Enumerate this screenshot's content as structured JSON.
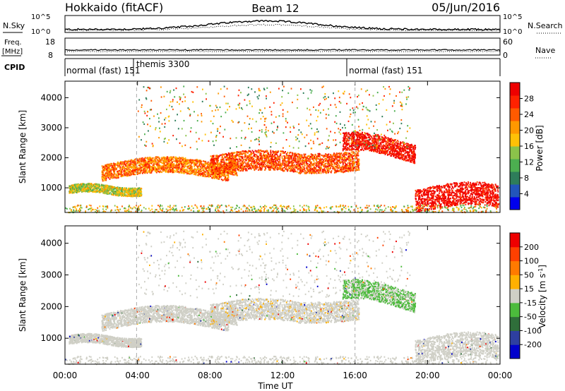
{
  "header": {
    "station": "Hokkaido (fitACF)",
    "beam": "Beam 12",
    "date": "05/Jun/2016"
  },
  "summary": {
    "nsky_label": "N.Sky",
    "nsearch_label": "N.Search",
    "freq_label_1": "Freq.",
    "freq_label_2": "[MHz]",
    "nave_label": "Nave",
    "cpid_label": "CPID",
    "nsky_ticks": [
      "10^5",
      "10^0"
    ],
    "nsearch_ticks": [
      "10^5",
      "10^0"
    ],
    "freq_ticks": [
      "18",
      "8"
    ],
    "nave_ticks": [
      "60",
      "0"
    ],
    "cpid_segments": [
      {
        "label": "normal (fast) 151",
        "start": 0.0,
        "end": 3.95
      },
      {
        "label": "themis 3300",
        "start": 3.95,
        "end": 16.0
      },
      {
        "label": "normal (fast) 151",
        "start": 16.0,
        "end": 24.0
      }
    ]
  },
  "chart_data": [
    {
      "type": "heatmap",
      "panel": "power",
      "ylabel": "Slant Range [km]",
      "xlabel": "",
      "xlim": [
        0,
        24
      ],
      "ylim": [
        180,
        4550
      ],
      "yticks": [
        "1000",
        "2000",
        "3000",
        "4000"
      ],
      "colorbar": {
        "label": "Power [dB]",
        "ticks": [
          "4",
          "8",
          "12",
          "16",
          "20",
          "24",
          "28"
        ],
        "colors": [
          "#0000ee",
          "#2255bb",
          "#2e7d5a",
          "#4caf50",
          "#8bc34a",
          "#ffc107",
          "#ff9800",
          "#ff5a00",
          "#ff2200",
          "#ee0000"
        ]
      },
      "features": [
        {
          "desc": "band",
          "t0": 0.2,
          "t1": 4.0,
          "r0": 850,
          "r1": 1050,
          "level": 0.55
        },
        {
          "desc": "band",
          "t0": 2.0,
          "t1": 9.5,
          "r0": 1300,
          "r1": 1900,
          "level": 0.75
        },
        {
          "desc": "band",
          "t0": 8.0,
          "t1": 16.0,
          "r0": 1400,
          "r1": 2400,
          "level": 0.78
        },
        {
          "desc": "band",
          "t0": 15.5,
          "t1": 19.0,
          "r0": 1900,
          "r1": 2700,
          "level": 0.92
        },
        {
          "desc": "band",
          "t0": 19.5,
          "t1": 23.8,
          "r0": 250,
          "r1": 1200,
          "level": 0.95
        }
      ]
    },
    {
      "type": "heatmap",
      "panel": "velocity",
      "ylabel": "Slant Range [km]",
      "xlabel": "Time UT",
      "xlim": [
        0,
        24
      ],
      "ylim": [
        180,
        4550
      ],
      "yticks": [
        "1000",
        "2000",
        "3000",
        "4000"
      ],
      "xticks": [
        "00:00",
        "04:00",
        "08:00",
        "12:00",
        "16:00",
        "20:00",
        "00:00"
      ],
      "colorbar": {
        "label": "Velocity [m s",
        "label_sup": "-1",
        "label_end": "]",
        "ticks": [
          "200",
          "100",
          "50",
          "15",
          "-15",
          "-50",
          "-100",
          "-200"
        ],
        "colors": [
          "#0000cc",
          "#2e3fa0",
          "#2f6e3a",
          "#4cbb3c",
          "#cfcfc6",
          "#ffb000",
          "#ff7a00",
          "#ff4000",
          "#ee0000"
        ]
      }
    }
  ],
  "vertical_markers_ut": [
    3.95,
    16.0
  ]
}
